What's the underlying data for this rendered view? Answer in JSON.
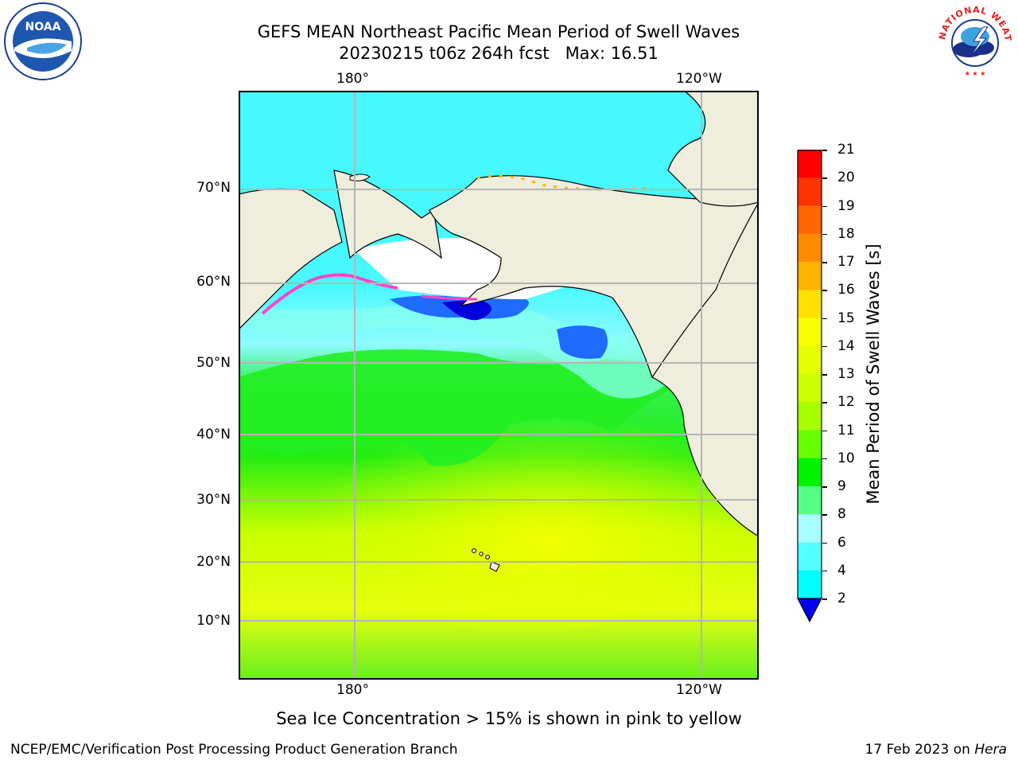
{
  "header": {
    "title_line1": "GEFS MEAN Northeast Pacific Mean Period of Swell Waves",
    "title_line2": "20230215 t06z 264h fcst   Max: 16.51"
  },
  "logos": {
    "noaa": {
      "name": "noaa-logo",
      "text": "NOAA"
    },
    "nws": {
      "name": "nws-logo",
      "text": "NATIONAL WEATHER SERVICE"
    }
  },
  "map": {
    "lon_labels": [
      "180°",
      "120°W"
    ],
    "lat_labels": [
      "70°N",
      "60°N",
      "50°N",
      "40°N",
      "30°N",
      "20°N",
      "10°N"
    ],
    "land_color": "#efeddc",
    "grid_color": "#b5b5b5"
  },
  "colorbar": {
    "label": "Mean Period of Swell Waves [s]",
    "ticks": [
      "21",
      "20",
      "19",
      "18",
      "17",
      "16",
      "15",
      "14",
      "13",
      "12",
      "11",
      "10",
      "9",
      "8",
      "6",
      "4",
      "2"
    ],
    "colors": [
      "#ff0000",
      "#ff3300",
      "#ff6600",
      "#ff8c00",
      "#ffb400",
      "#ffe000",
      "#f7ff00",
      "#e6ff00",
      "#ccff00",
      "#a8ff00",
      "#66ff00",
      "#00f400",
      "#55ff88",
      "#a8ffff",
      "#55ffff",
      "#00ffff",
      "#0078ff",
      "#0000ee"
    ],
    "extend": "min"
  },
  "notes": {
    "sea_ice": "Sea Ice Concentration > 15% is shown in pink to yellow"
  },
  "footer": {
    "left": "NCEP/EMC/Verification Post Processing Product Generation Branch",
    "right_date": "17 Feb 2023 on ",
    "right_host": "Hera"
  }
}
